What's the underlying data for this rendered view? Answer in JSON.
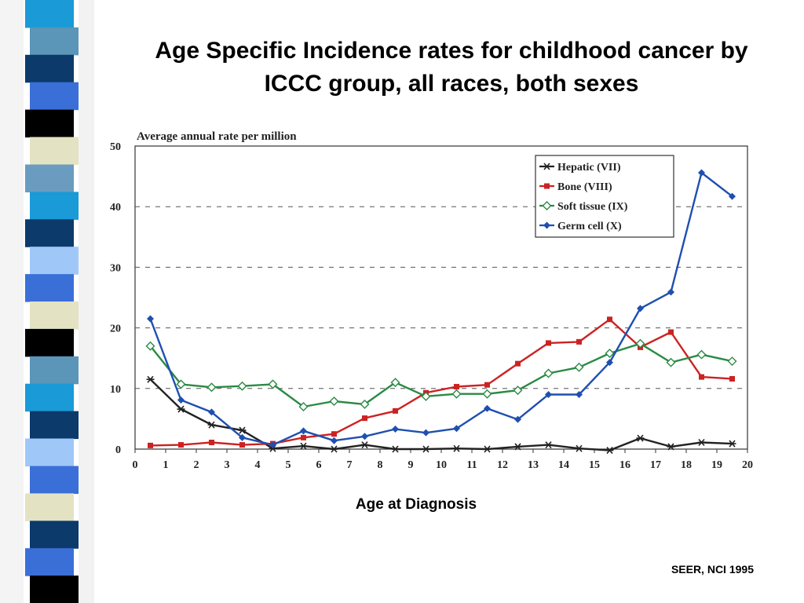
{
  "slide": {
    "title_line1": "Age Specific Incidence rates for childhood cancer by",
    "title_line2": "ICCC group, all races, both sexes",
    "x_axis_caption": "Age at Diagnosis",
    "source": "SEER, NCI 1995"
  },
  "stripe_colors": [
    "#1a9ad6",
    "#5b95b8",
    "#0b3a6b",
    "#3a6fd8",
    "#000000",
    "#e3e3c4",
    "#6a9cc0",
    "#1a9ad6",
    "#0b3a6b",
    "#9fc8f8",
    "#3a6fd8",
    "#e3e3c4",
    "#000000",
    "#5b95b8",
    "#1a9ad6",
    "#0b3a6b",
    "#9fc8f8",
    "#3a6fd8",
    "#e3e3c4",
    "#0b3a6b",
    "#3a6fd8",
    "#000000"
  ],
  "chart_data": {
    "type": "line",
    "title": "Average annual rate per million",
    "xlabel": "Age at Diagnosis",
    "ylabel": "",
    "xlim": [
      0,
      20
    ],
    "ylim": [
      0,
      50
    ],
    "xticks": [
      "0",
      "1",
      "2",
      "3",
      "4",
      "5",
      "6",
      "7",
      "8",
      "9",
      "10",
      "11",
      "12",
      "13",
      "14",
      "15",
      "16",
      "17",
      "18",
      "19",
      "20"
    ],
    "yticks": [
      "0",
      "10",
      "20",
      "30",
      "40",
      "50"
    ],
    "grid": "horizontal dashed",
    "legend_position": "top-right",
    "x": [
      0.5,
      1.5,
      2.5,
      3.5,
      4.5,
      5.5,
      6.5,
      7.5,
      8.5,
      9.5,
      10.5,
      11.5,
      12.5,
      13.5,
      14.5,
      15.5,
      16.5,
      17.5,
      18.5,
      19.5
    ],
    "series": [
      {
        "name": "Hepatic (VII)",
        "color": "#222222",
        "marker": "star",
        "values": [
          11.5,
          6.6,
          4.0,
          3.1,
          0.1,
          0.5,
          0.0,
          0.7,
          0.0,
          0.0,
          0.1,
          0.0,
          0.4,
          0.7,
          0.1,
          -0.2,
          1.8,
          0.4,
          1.1,
          0.9
        ]
      },
      {
        "name": "Bone (VIII)",
        "color": "#cc2222",
        "marker": "square",
        "values": [
          0.6,
          0.7,
          1.1,
          0.7,
          0.9,
          1.9,
          2.5,
          5.1,
          6.3,
          9.3,
          10.3,
          10.6,
          14.1,
          17.5,
          17.7,
          21.4,
          16.8,
          19.3,
          11.9,
          11.6
        ]
      },
      {
        "name": "Soft tissue (IX)",
        "color": "#2a8a44",
        "marker": "hollow-diamond",
        "values": [
          17.0,
          10.7,
          10.2,
          10.4,
          10.7,
          7.0,
          7.9,
          7.4,
          11.0,
          8.7,
          9.1,
          9.1,
          9.7,
          12.5,
          13.5,
          15.8,
          17.4,
          14.3,
          15.6,
          14.5
        ]
      },
      {
        "name": "Germ cell (X)",
        "color": "#1f4fb0",
        "marker": "diamond",
        "values": [
          21.5,
          8.1,
          6.1,
          1.9,
          0.7,
          3.0,
          1.4,
          2.1,
          3.3,
          2.7,
          3.4,
          6.7,
          4.9,
          9.0,
          9.0,
          14.3,
          23.2,
          25.9,
          45.6,
          41.7
        ]
      }
    ]
  }
}
